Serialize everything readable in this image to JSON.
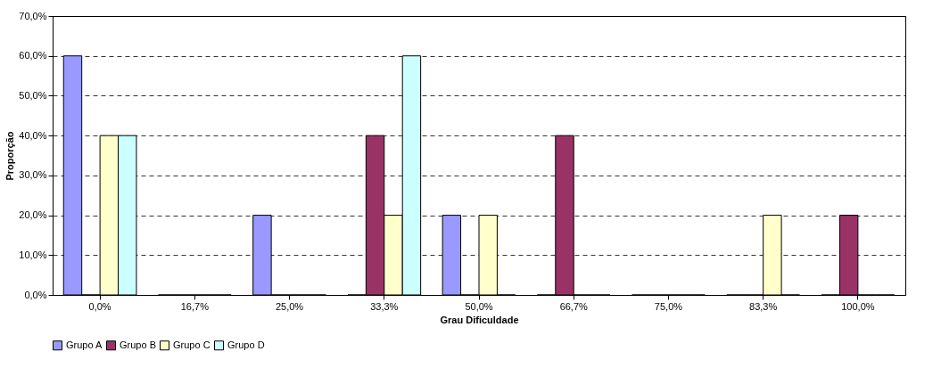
{
  "chart_data": {
    "type": "bar",
    "xlabel": "Grau Dificuldade",
    "ylabel": "Proporção",
    "categories": [
      "0,0%",
      "16,7%",
      "25,0%",
      "33,3%",
      "50,0%",
      "66,7%",
      "75,0%",
      "83,3%",
      "100,0%"
    ],
    "series": [
      {
        "name": "Grupo A",
        "color": "#9999ff",
        "values": [
          60,
          0,
          20,
          0,
          20,
          0,
          0,
          0,
          0
        ]
      },
      {
        "name": "Grupo B",
        "color": "#993366",
        "values": [
          0,
          0,
          0,
          40,
          0,
          40,
          0,
          0,
          20
        ]
      },
      {
        "name": "Grupo C",
        "color": "#ffffcc",
        "values": [
          40,
          0,
          0,
          20,
          20,
          0,
          0,
          20,
          0
        ]
      },
      {
        "name": "Grupo D",
        "color": "#ccffff",
        "values": [
          40,
          0,
          0,
          60,
          0,
          0,
          0,
          0,
          0
        ]
      }
    ],
    "ylim": [
      0,
      70
    ],
    "yticks": [
      {
        "value": 0,
        "label": "0,0%"
      },
      {
        "value": 10,
        "label": "10,0%"
      },
      {
        "value": 20,
        "label": "20,0%"
      },
      {
        "value": 30,
        "label": "30,0%"
      },
      {
        "value": 40,
        "label": "40,0%"
      },
      {
        "value": 50,
        "label": "50,0%"
      },
      {
        "value": 60,
        "label": "60,0%"
      },
      {
        "value": 70,
        "label": "70,0%"
      }
    ],
    "grid": "y",
    "legend": "bottom"
  }
}
